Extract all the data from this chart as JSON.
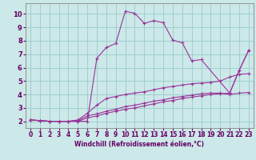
{
  "background_color": "#cce8e8",
  "line_color": "#993399",
  "grid_color": "#99cccc",
  "xlabel": "Windchill (Refroidissement éolien,°C)",
  "xlabel_color": "#660066",
  "tick_color": "#660066",
  "xlim": [
    -0.5,
    23.5
  ],
  "ylim": [
    1.5,
    10.8
  ],
  "xticks": [
    0,
    1,
    2,
    3,
    4,
    5,
    6,
    7,
    8,
    9,
    10,
    11,
    12,
    13,
    14,
    15,
    16,
    17,
    18,
    19,
    20,
    21,
    22,
    23
  ],
  "yticks": [
    2,
    3,
    4,
    5,
    6,
    7,
    8,
    9,
    10
  ],
  "lines": [
    {
      "x": [
        0,
        1,
        2,
        3,
        4,
        5,
        6,
        7,
        8,
        9,
        10,
        11,
        12,
        13,
        14,
        15,
        16,
        17,
        18,
        21,
        22,
        23
      ],
      "y": [
        2.1,
        2.05,
        2.0,
        2.0,
        2.0,
        2.0,
        2.0,
        6.7,
        7.5,
        7.8,
        10.2,
        10.05,
        9.3,
        9.5,
        9.35,
        8.05,
        7.85,
        6.5,
        6.6,
        4.1,
        5.8,
        7.3
      ]
    },
    {
      "x": [
        0,
        1,
        2,
        3,
        4,
        5,
        6,
        7,
        8,
        9,
        10,
        11,
        12,
        13,
        14,
        15,
        16,
        17,
        18,
        19,
        20,
        21,
        22,
        23
      ],
      "y": [
        2.1,
        2.05,
        2.0,
        2.0,
        2.0,
        2.1,
        2.6,
        3.2,
        3.7,
        3.85,
        4.0,
        4.1,
        4.2,
        4.35,
        4.5,
        4.6,
        4.7,
        4.8,
        4.85,
        4.9,
        5.0,
        5.3,
        5.5,
        5.55
      ]
    },
    {
      "x": [
        0,
        1,
        2,
        3,
        4,
        5,
        6,
        7,
        8,
        9,
        10,
        11,
        12,
        13,
        14,
        15,
        16,
        17,
        18,
        19,
        20,
        21,
        22,
        23
      ],
      "y": [
        2.1,
        2.05,
        2.0,
        2.0,
        2.0,
        2.05,
        2.4,
        2.55,
        2.75,
        2.9,
        3.1,
        3.2,
        3.35,
        3.5,
        3.6,
        3.75,
        3.85,
        3.95,
        4.05,
        4.1,
        4.1,
        4.0,
        4.1,
        4.15
      ]
    },
    {
      "x": [
        0,
        1,
        2,
        3,
        4,
        5,
        6,
        7,
        8,
        9,
        10,
        11,
        12,
        13,
        14,
        15,
        16,
        17,
        18,
        19,
        20,
        21,
        22,
        23
      ],
      "y": [
        2.1,
        2.05,
        2.0,
        2.0,
        2.0,
        2.0,
        2.25,
        2.4,
        2.6,
        2.75,
        2.9,
        3.0,
        3.15,
        3.3,
        3.45,
        3.55,
        3.7,
        3.8,
        3.9,
        4.0,
        4.05,
        4.1,
        5.8,
        7.3
      ]
    }
  ]
}
